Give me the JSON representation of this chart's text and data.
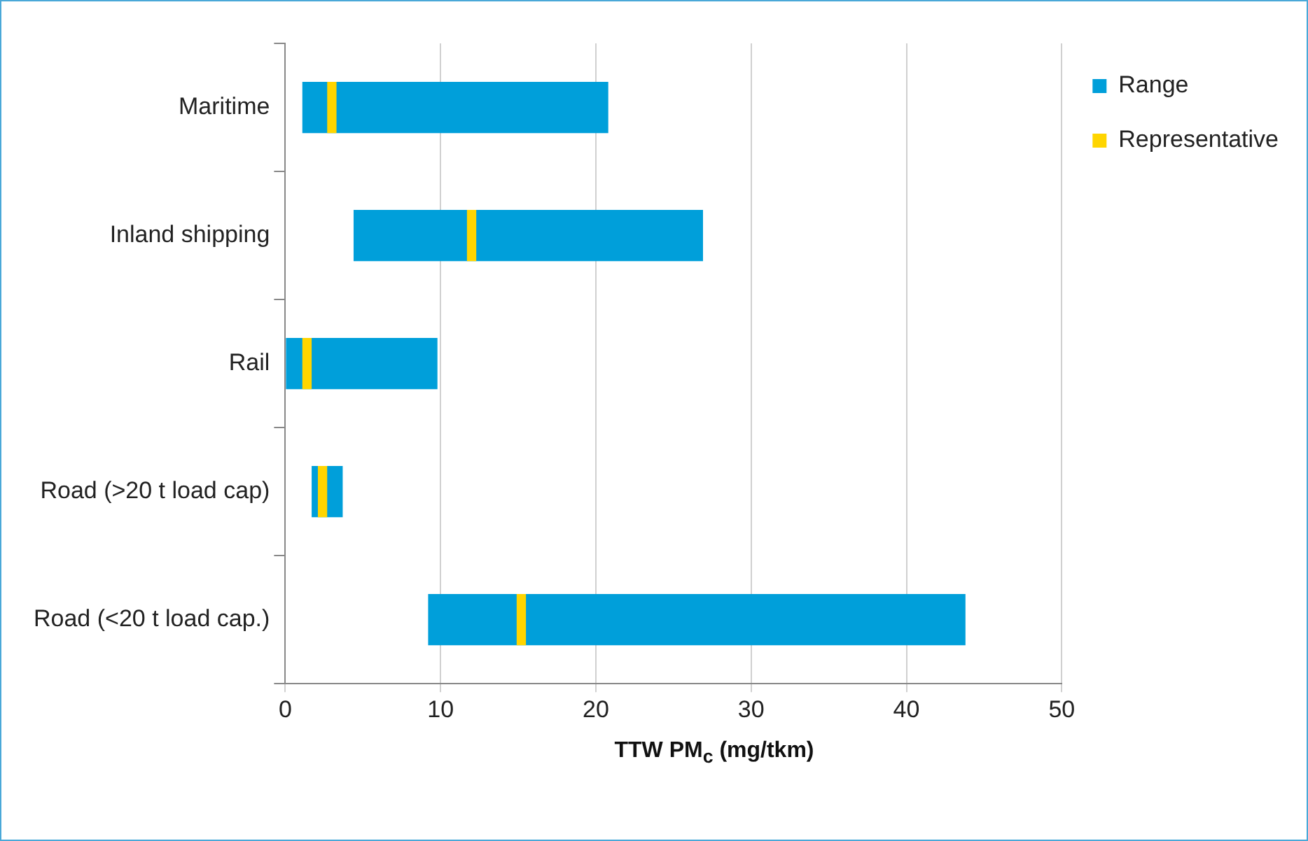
{
  "chart_data": {
    "type": "bar",
    "orientation": "horizontal",
    "xlabel": "TTW PM$_{c}$ (mg/tkm)",
    "categories": [
      "Maritime",
      "Inland shipping",
      "Rail",
      "Road (>20 t load cap)",
      "Road (<20 t load cap.)"
    ],
    "series": [
      {
        "name": "Range",
        "color": "#009fda",
        "base": [
          1.1,
          4.4,
          0,
          1.7,
          9.2
        ],
        "values": [
          19.7,
          22.5,
          9.8,
          2.0,
          34.6
        ]
      },
      {
        "name": "Representative",
        "color": "#ffd500",
        "base": [
          2.7,
          11.7,
          1.1,
          2.1,
          14.9
        ],
        "values": [
          0.6,
          0.6,
          0.6,
          0.6,
          0.6
        ]
      }
    ],
    "xlim": [
      0,
      50
    ],
    "xticks": [
      0,
      10,
      20,
      30,
      40,
      50
    ],
    "grid": "x",
    "legend": "top right"
  }
}
